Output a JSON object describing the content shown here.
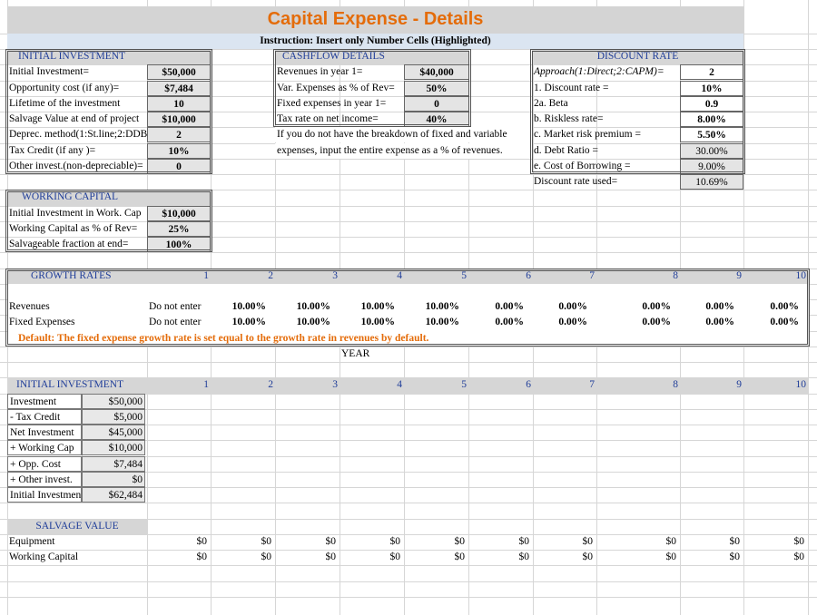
{
  "title": "Capital Expense - Details",
  "instruction": "Instruction: Insert only Number Cells (Highlighted)",
  "initial_investment": {
    "title": "INITIAL INVESTMENT",
    "rows": [
      [
        "Initial Investment=",
        "$50,000"
      ],
      [
        "Opportunity cost (if any)=",
        "$7,484"
      ],
      [
        "Lifetime of the investment",
        "10"
      ],
      [
        "Salvage Value at end of project",
        "$10,000"
      ],
      [
        "Deprec. method(1:St.line;2:DDB",
        "2"
      ],
      [
        "Tax Credit (if any )=",
        "10%"
      ],
      [
        "Other invest.(non-depreciable)=",
        "0"
      ]
    ]
  },
  "cashflow": {
    "title": "CASHFLOW DETAILS",
    "rows": [
      [
        "Revenues in  year 1=",
        "$40,000"
      ],
      [
        "Var. Expenses as % of Rev=",
        "50%"
      ],
      [
        "Fixed expenses in year 1=",
        "0"
      ],
      [
        "Tax rate on net income=",
        "40%"
      ]
    ],
    "note": [
      "If you do not have the breakdown of fixed and variable",
      "expenses, input the entire expense as a % of revenues."
    ]
  },
  "discount_rate": {
    "title": "DISCOUNT RATE",
    "rows": [
      [
        "Approach(1:Direct;2:CAPM)=",
        "2"
      ],
      [
        "1. Discount rate =",
        "10%"
      ],
      [
        "2a. Beta",
        "0.9"
      ],
      [
        " b. Riskless rate=",
        "8.00%"
      ],
      [
        " c. Market risk premium =",
        "5.50%"
      ],
      [
        " d. Debt Ratio =",
        "30.00%"
      ],
      [
        " e. Cost of Borrowing =",
        "9.00%"
      ]
    ],
    "used": [
      "Discount rate used=",
      "10.69%"
    ]
  },
  "working_capital": {
    "title": "WORKING CAPITAL",
    "rows": [
      [
        "Initial Investment in Work. Cap",
        "$10,000"
      ],
      [
        "Working Capital as % of Rev=",
        "25%"
      ],
      [
        "Salvageable fraction at end=",
        "100%"
      ]
    ]
  },
  "growth_rates": {
    "title": "GROWTH RATES",
    "years": [
      "1",
      "2",
      "3",
      "4",
      "5",
      "6",
      "7",
      "8",
      "9",
      "10"
    ],
    "rows": [
      {
        "label": "Revenues",
        "note": "Do not enter",
        "values": [
          "10.00%",
          "10.00%",
          "10.00%",
          "10.00%",
          "0.00%",
          "0.00%",
          "0.00%",
          "0.00%",
          "0.00%"
        ]
      },
      {
        "label": "Fixed Expenses",
        "note": "Do not enter",
        "values": [
          "10.00%",
          "10.00%",
          "10.00%",
          "10.00%",
          "0.00%",
          "0.00%",
          "0.00%",
          "0.00%",
          "0.00%"
        ]
      }
    ],
    "default_note": "Default: The fixed expense growth rate is set equal to the growth rate in revenues by default.",
    "axis_label": "YEAR"
  },
  "initial_investment_table": {
    "title": "INITIAL INVESTMENT",
    "years": [
      "1",
      "2",
      "3",
      "4",
      "5",
      "6",
      "7",
      "8",
      "9",
      "10"
    ],
    "rows": [
      [
        "Investment",
        "$50,000"
      ],
      [
        " - Tax Credit",
        "$5,000"
      ],
      [
        "Net Investment",
        "$45,000"
      ],
      [
        " + Working Cap",
        "$10,000"
      ],
      [
        " + Opp. Cost",
        "$7,484"
      ],
      [
        " + Other invest.",
        "$0"
      ],
      [
        "Initial Investment",
        "$62,484"
      ]
    ]
  },
  "salvage_value": {
    "title": "SALVAGE VALUE",
    "rows": [
      {
        "label": "Equipment",
        "values": [
          "$0",
          "$0",
          "$0",
          "$0",
          "$0",
          "$0",
          "$0",
          "$0",
          "$0",
          "$0"
        ]
      },
      {
        "label": "Working Capital",
        "values": [
          "$0",
          "$0",
          "$0",
          "$0",
          "$0",
          "$0",
          "$0",
          "$0",
          "$0",
          "$0"
        ]
      }
    ]
  }
}
